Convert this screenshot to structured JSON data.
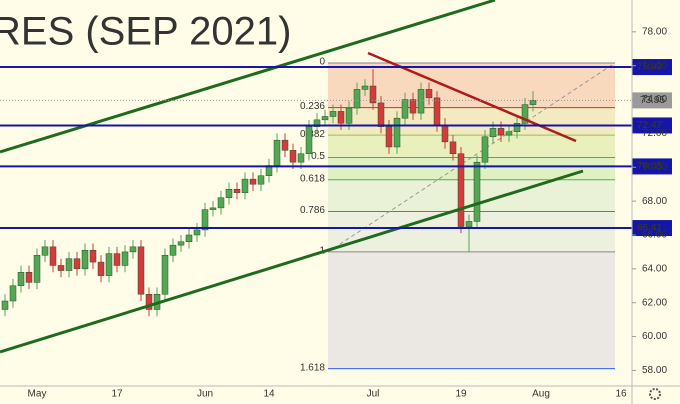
{
  "chart_data": {
    "type": "candlestick",
    "title": "RES (SEP 2021)",
    "categories": [
      null,
      null,
      null,
      null,
      "May",
      null,
      null,
      null,
      null,
      null,
      null,
      null,
      null,
      null,
      "17",
      null,
      null,
      null,
      null,
      null,
      null,
      null,
      null,
      null,
      null,
      "Jun",
      null,
      null,
      null,
      null,
      null,
      null,
      null,
      "14",
      null,
      null,
      null,
      null,
      null,
      null,
      null,
      null,
      null,
      null,
      null,
      null,
      "Jul",
      null,
      null,
      null,
      null,
      null,
      null,
      null,
      null,
      null,
      null,
      "19",
      null,
      null,
      null,
      null,
      null,
      null,
      null,
      null,
      null,
      "Aug",
      null,
      null,
      null,
      null,
      null,
      null,
      null,
      null,
      null,
      "16",
      null
    ],
    "open": [
      61.6,
      62.1,
      63.0,
      63.8,
      63.2,
      64.8,
      65.3,
      64.2,
      63.9,
      64.6,
      64.0,
      65.1,
      64.4,
      63.6,
      64.9,
      64.2,
      65.0,
      65.3,
      62.5,
      61.6,
      62.5,
      64.8,
      65.4,
      65.6,
      66.0,
      66.3,
      67.5,
      67.6,
      68.2,
      68.7,
      68.5,
      69.3,
      69.0,
      69.5,
      70.1,
      71.6,
      71.0,
      70.3,
      70.8,
      72.4,
      72.8,
      73.0,
      73.3,
      72.6,
      73.5,
      74.6,
      74.8,
      73.8,
      72.4,
      71.2,
      72.9,
      74.0,
      73.2,
      74.6,
      74.1,
      72.5,
      71.5,
      70.8,
      66.5,
      66.8,
      70.3,
      71.8,
      72.3,
      71.9,
      72.1,
      72.6,
      73.7,
      null,
      null,
      null,
      null,
      null,
      null,
      null,
      null,
      null,
      null,
      null,
      null
    ],
    "high": [
      62.5,
      63.4,
      64.2,
      64.2,
      65.2,
      65.7,
      65.7,
      64.6,
      65.0,
      65.0,
      65.5,
      65.5,
      64.8,
      65.3,
      65.3,
      65.4,
      65.7,
      65.7,
      62.9,
      62.9,
      65.2,
      65.8,
      66.0,
      66.4,
      66.7,
      67.9,
      68.0,
      68.6,
      69.1,
      69.1,
      69.7,
      69.7,
      69.9,
      70.5,
      72.0,
      72.0,
      71.4,
      71.2,
      72.8,
      73.2,
      73.4,
      73.7,
      73.7,
      73.9,
      75.0,
      75.2,
      75.8,
      74.2,
      72.8,
      73.3,
      74.4,
      74.4,
      75.0,
      75.0,
      74.5,
      72.9,
      71.9,
      71.2,
      67.2,
      70.7,
      72.2,
      72.7,
      72.7,
      72.5,
      73.0,
      74.1,
      74.5,
      null,
      null,
      null,
      null,
      null,
      null,
      null,
      null,
      null,
      null,
      null,
      null
    ],
    "low": [
      61.2,
      61.7,
      62.6,
      62.8,
      62.8,
      64.4,
      63.8,
      63.5,
      63.5,
      63.6,
      63.6,
      64.0,
      63.2,
      63.2,
      63.8,
      63.8,
      64.6,
      62.1,
      61.2,
      61.2,
      62.1,
      64.4,
      65.0,
      65.2,
      65.6,
      65.9,
      67.1,
      67.2,
      67.8,
      68.1,
      68.1,
      68.6,
      68.6,
      69.1,
      69.7,
      70.6,
      69.9,
      69.9,
      70.4,
      72.0,
      72.4,
      72.6,
      72.2,
      72.2,
      73.1,
      74.2,
      73.4,
      72.0,
      70.8,
      70.8,
      72.5,
      72.8,
      72.8,
      73.7,
      72.1,
      71.1,
      70.4,
      66.1,
      65.0,
      66.4,
      69.9,
      71.4,
      71.5,
      71.5,
      71.7,
      72.2,
      73.3,
      null,
      null,
      null,
      null,
      null,
      null,
      null,
      null,
      null,
      null,
      null,
      null
    ],
    "close": [
      62.1,
      63.0,
      63.8,
      63.2,
      64.8,
      65.3,
      64.2,
      63.9,
      64.6,
      64.0,
      65.1,
      64.4,
      63.6,
      64.9,
      64.2,
      65.0,
      65.3,
      62.5,
      61.6,
      62.5,
      64.8,
      65.4,
      65.6,
      66.0,
      66.3,
      67.5,
      67.6,
      68.2,
      68.7,
      68.5,
      69.3,
      69.0,
      69.5,
      70.1,
      71.6,
      71.0,
      70.3,
      70.8,
      72.4,
      72.8,
      73.0,
      73.3,
      72.6,
      73.5,
      74.6,
      74.8,
      73.8,
      72.4,
      71.2,
      72.9,
      74.0,
      73.2,
      74.6,
      74.1,
      72.5,
      71.5,
      70.8,
      66.5,
      66.8,
      70.3,
      71.8,
      72.3,
      71.9,
      72.1,
      72.6,
      73.7,
      73.95,
      null,
      null,
      null,
      null,
      null,
      null,
      null,
      null,
      null,
      null,
      null,
      null
    ],
    "up_color": "#53a653",
    "down_color": "#d23c3c",
    "ylim": [
      57.08,
      79.88
    ],
    "yticks": [
      {
        "value": 58,
        "label": "58.00"
      },
      {
        "value": 60,
        "label": "60.00"
      },
      {
        "value": 62,
        "label": "62.00"
      },
      {
        "value": 64,
        "label": "64.00"
      },
      {
        "value": 66,
        "label": "66.00"
      },
      {
        "value": 68,
        "label": "68.00"
      },
      {
        "value": 70,
        "label": "70.00"
      },
      {
        "value": 72,
        "label": "72.00"
      },
      {
        "value": 74,
        "label": "74.00"
      },
      {
        "value": 76,
        "label": "76.00"
      },
      {
        "value": 78,
        "label": "78.00"
      }
    ],
    "price_lines": [
      75.92,
      72.47,
      70.05,
      66.41
    ],
    "price_line_color": "#1515a8",
    "last_price": 73.95,
    "fib": {
      "start": 76.16,
      "end": 65.0,
      "levels": [
        0,
        0.236,
        0.382,
        0.5,
        0.618,
        0.786,
        1,
        1.618
      ],
      "colors": [
        "#888888",
        "#d32f2f",
        "#8bc34a",
        "#4caf50",
        "#4caf50",
        "#2196a3",
        "#888888",
        "#2962ff"
      ],
      "fills": [
        "#f9d9bd",
        "#f3eac2",
        "#e9f0bd",
        "#dff0c3",
        "#e9f2d6",
        "#eef0df",
        "#ebe7e3"
      ]
    }
  }
}
